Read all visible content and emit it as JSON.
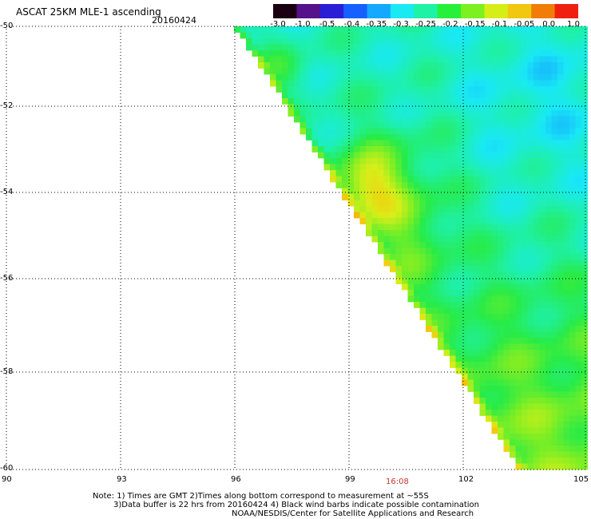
{
  "header": {
    "title": "ASCAT 25KM MLE-1 ascending",
    "date": "20160424"
  },
  "colorbar": {
    "labels": [
      "-3.0",
      "-1.0",
      "-0.5",
      "-0.4",
      "-0.35",
      "-0.3",
      "-0.25",
      "-0.2",
      "-0.15",
      "-0.1",
      "-0.05",
      "0.0",
      "1.0"
    ],
    "colors": [
      "#1a0010",
      "#55128a",
      "#2b1fd6",
      "#1660ff",
      "#15a8ff",
      "#19e9f3",
      "#1ef2a4",
      "#27f03a",
      "#7cf020",
      "#d6ee18",
      "#f2c710",
      "#f17d08",
      "#f02010"
    ]
  },
  "axes": {
    "lat_labels": [
      "-50",
      "-52",
      "-54",
      "-56",
      "-58",
      "-60"
    ],
    "lon_labels": [
      "90",
      "93",
      "96",
      "99",
      "102",
      "105"
    ]
  },
  "time_label": "16:08",
  "notes": {
    "line1": "Note: 1) Times are GMT 2)Times along bottom correspond to measurement at ~55S",
    "line2": "3)Data buffer is 22 hrs from 20160424 4) Black wind barbs indicate possible contamination",
    "line3": "NOAA/NESDIS/Center for Satellite Applications and Research"
  }
}
